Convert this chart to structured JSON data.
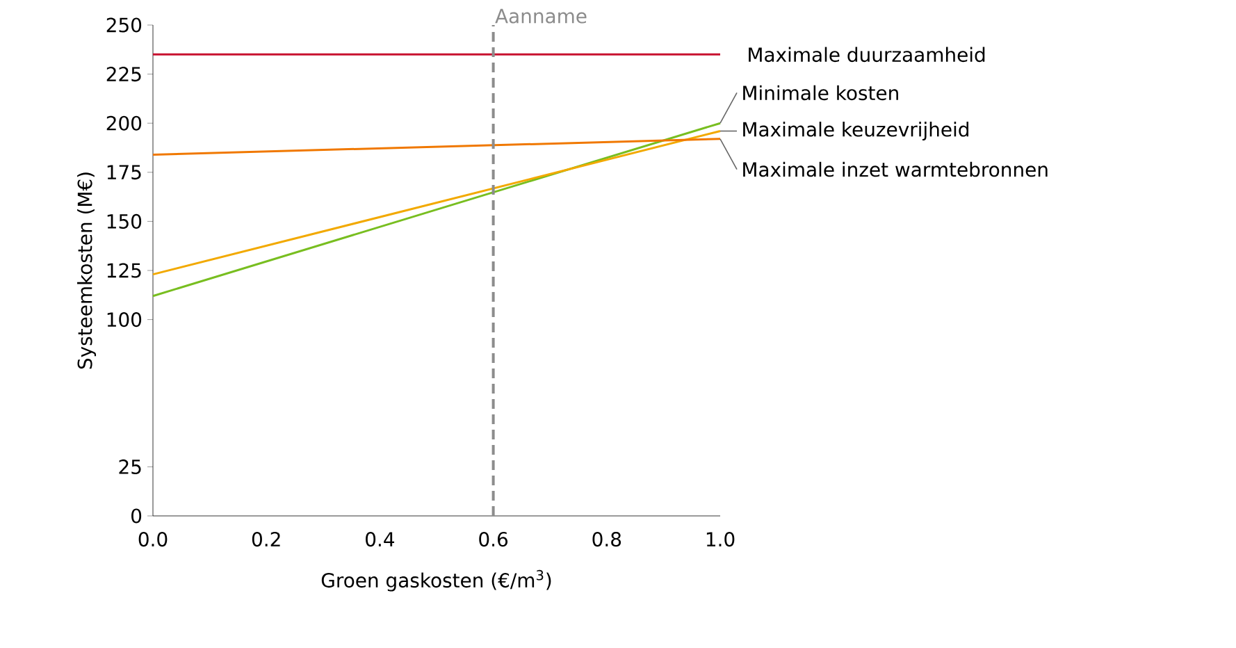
{
  "chart_data": {
    "type": "line",
    "xlabel": "Groen gaskosten (€/m$^{3}$)",
    "ylabel": "Systeemkosten (M€)",
    "x": [
      0,
      1
    ],
    "series": [
      {
        "name": "Maximale duurzaamheid",
        "color": "#c8102e",
        "values": [
          235,
          235
        ]
      },
      {
        "name": "Minimale kosten",
        "color": "#78be20",
        "values": [
          112,
          200
        ]
      },
      {
        "name": "Maximale keuzevrijheid",
        "color": "#f2a900",
        "values": [
          123,
          196
        ]
      },
      {
        "name": "Maximale inzet warmtebronnen",
        "color": "#f07800",
        "values": [
          184,
          192
        ]
      }
    ],
    "xlim": [
      0,
      1
    ],
    "xticks": [
      {
        "value": 0,
        "label": "0.0"
      },
      {
        "value": 0.2,
        "label": "0.2"
      },
      {
        "value": 0.4,
        "label": "0.4"
      },
      {
        "value": 0.6,
        "label": "0.6"
      },
      {
        "value": 0.8,
        "label": "0.8"
      },
      {
        "value": 1,
        "label": "1.0"
      }
    ],
    "ylim": [
      0,
      250
    ],
    "yticks": [
      0,
      25,
      100,
      125,
      150,
      175,
      200,
      225,
      250
    ],
    "ref_lines": [
      {
        "axis": "x",
        "value": 0.6,
        "label": "Aanname",
        "color": "#8c8c8c",
        "line_style": "dashed"
      }
    ],
    "grid": false,
    "marker": "none",
    "line_style": "solid"
  }
}
